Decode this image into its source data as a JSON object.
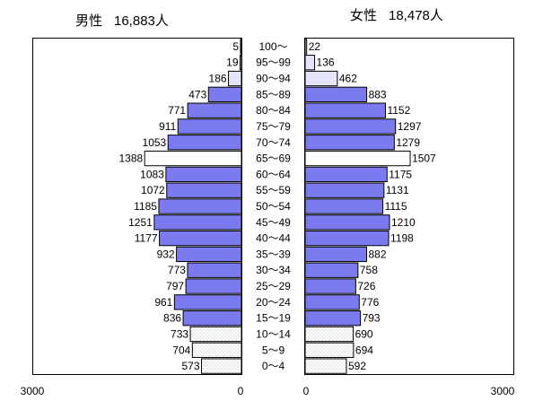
{
  "chart_data": {
    "type": "bar",
    "orientation": "horizontal",
    "layout": "population-pyramid",
    "categories": [
      "100〜",
      "95〜99",
      "90〜94",
      "85〜89",
      "80〜84",
      "75〜79",
      "70〜74",
      "65〜69",
      "60〜64",
      "55〜59",
      "50〜54",
      "45〜49",
      "40〜44",
      "35〜39",
      "30〜34",
      "25〜29",
      "20〜24",
      "15〜19",
      "10〜14",
      "5〜9",
      "0〜4"
    ],
    "series": [
      {
        "name": "男性",
        "total_label": "16,883人",
        "side": "left",
        "values": [
          5,
          19,
          186,
          473,
          771,
          911,
          1053,
          1388,
          1083,
          1072,
          1185,
          1251,
          1177,
          932,
          773,
          797,
          961,
          836,
          733,
          704,
          573
        ]
      },
      {
        "name": "女性",
        "total_label": "18,478人",
        "side": "right",
        "values": [
          22,
          136,
          462,
          883,
          1152,
          1297,
          1279,
          1507,
          1175,
          1131,
          1115,
          1210,
          1198,
          882,
          758,
          726,
          776,
          793,
          690,
          694,
          592
        ]
      }
    ],
    "axis": {
      "left_ticks": [
        "3000",
        "0"
      ],
      "right_ticks": [
        "0",
        "3000"
      ],
      "max": 3000
    },
    "colors": {
      "bar_default": "#7b7bef",
      "bar_light": "#e4e4fb",
      "bar_highlight": "#ffffff",
      "dotted_fill": "#ffffff",
      "dot_color": "#9a9a9a",
      "outline": "#000000"
    },
    "grid": false,
    "legend": "none"
  }
}
